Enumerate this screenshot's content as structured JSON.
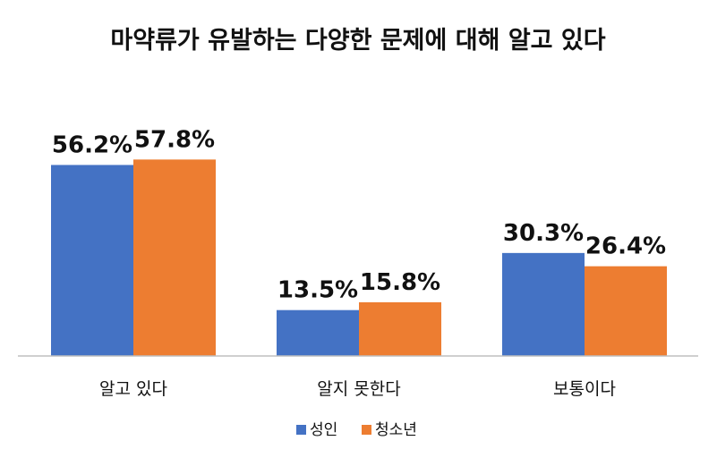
{
  "chart_data": {
    "type": "bar",
    "title": "마약류가 유발하는 다양한 문제에 대해 알고 있다",
    "categories": [
      "알고 있다",
      "알지 못한다",
      "보통이다"
    ],
    "series": [
      {
        "name": "성인",
        "values": [
          56.2,
          13.5,
          30.3
        ],
        "labels": [
          "56.2%",
          "13.5%",
          "30.3%"
        ],
        "color": "#4472C4"
      },
      {
        "name": "청소년",
        "values": [
          57.8,
          15.8,
          26.4
        ],
        "labels": [
          "57.8%",
          "15.8%",
          "26.4%"
        ],
        "color": "#ED7D31"
      }
    ],
    "ylim": [
      0,
      60
    ],
    "legend_position": "bottom-center",
    "grid": false,
    "axis_color": "#BFBFBF"
  }
}
